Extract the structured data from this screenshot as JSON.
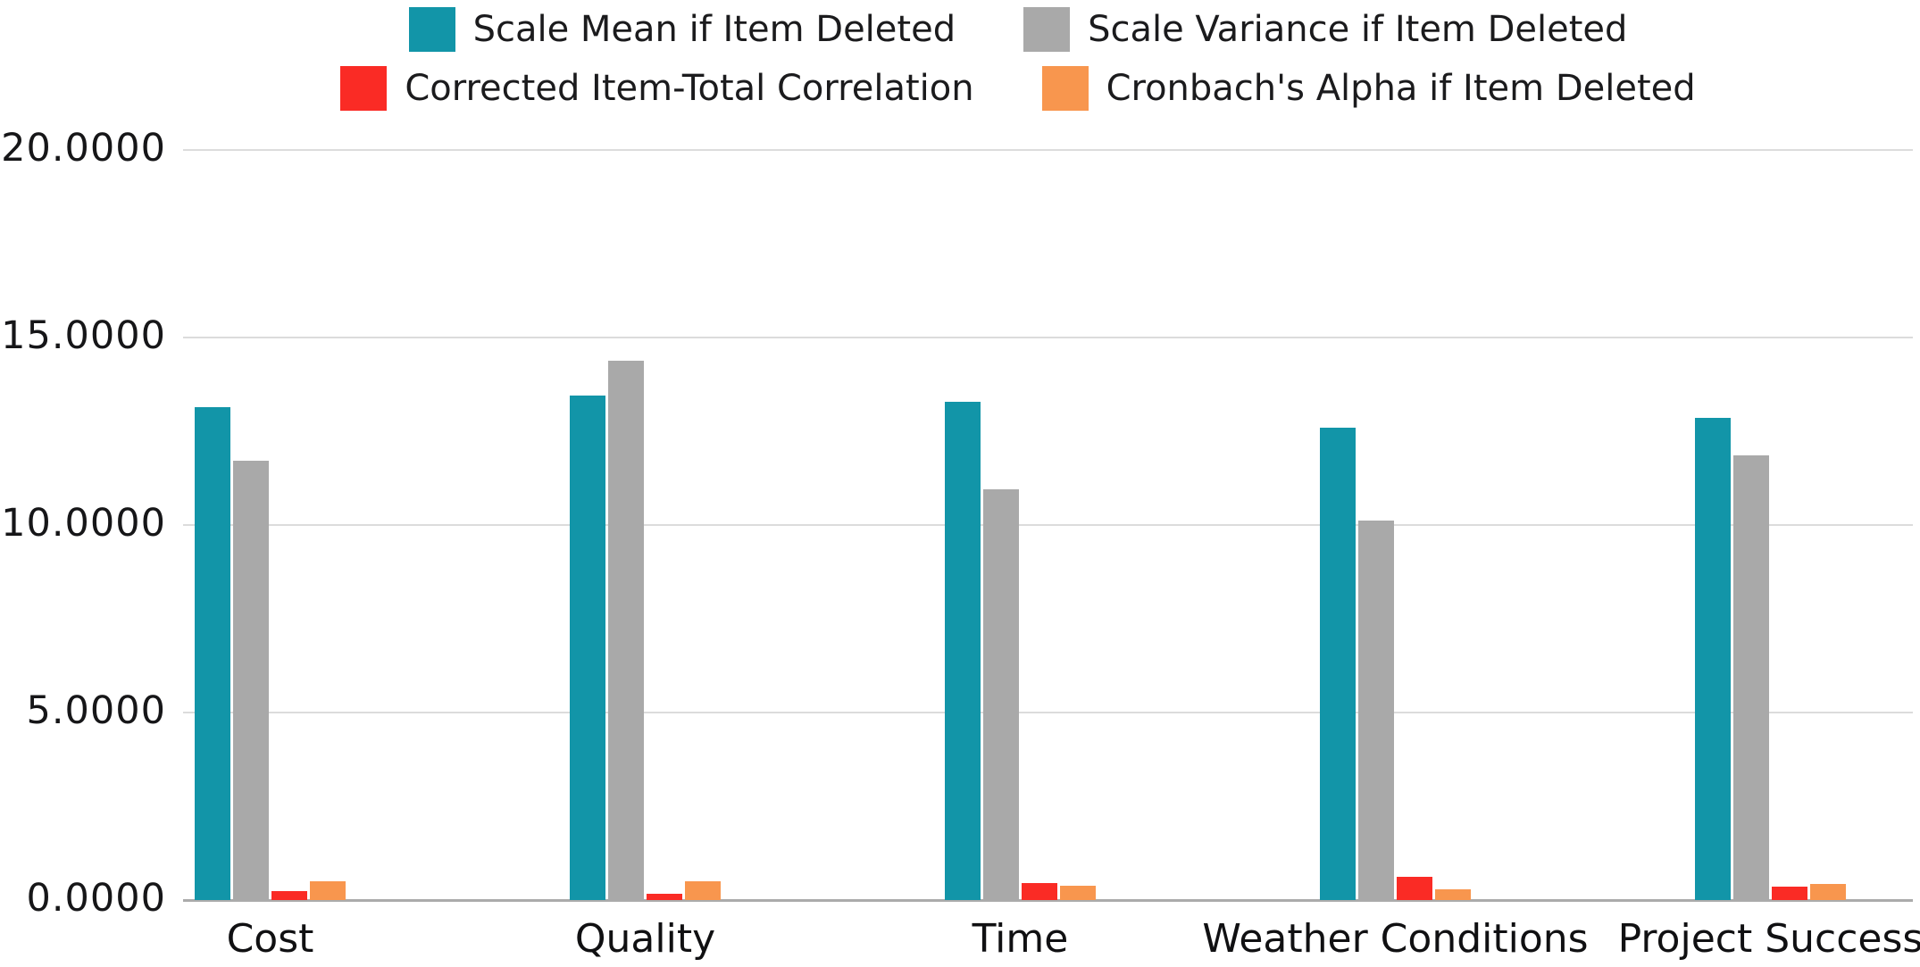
{
  "chart_data": {
    "type": "bar",
    "title": "",
    "xlabel": "",
    "ylabel": "",
    "categories": [
      "Cost",
      "Quality",
      "Time",
      "Weather Conditions",
      "Project Success"
    ],
    "series": [
      {
        "name": "Scale Mean if Item Deleted",
        "color": "#1295A8",
        "values": [
          13.15,
          13.45,
          13.28,
          12.6,
          12.85
        ]
      },
      {
        "name": "Scale Variance if Item Deleted",
        "color": "#A9A9A9",
        "values": [
          11.72,
          14.38,
          10.95,
          10.12,
          11.85
        ]
      },
      {
        "name": "Corrected Item-Total Correlation",
        "color": "#FA2B25",
        "values": [
          0.24,
          0.16,
          0.45,
          0.62,
          0.35
        ]
      },
      {
        "name": "Cronbach's Alpha if Item Deleted",
        "color": "#F8964E",
        "values": [
          0.51,
          0.49,
          0.39,
          0.28,
          0.43
        ]
      }
    ],
    "yticks": [
      "20.0000",
      "15.0000",
      "10.0000",
      "5.0000",
      "0.0000"
    ],
    "ytick_values": [
      20,
      15,
      10,
      5,
      0
    ],
    "ylim": [
      0,
      20
    ],
    "grid": true,
    "legend_position": "top",
    "legend_rows": [
      [
        0,
        1
      ],
      [
        2,
        3
      ]
    ],
    "colors": {
      "grid_line": "#DCDCDC",
      "zero_line": "#ABABAB",
      "text": "#1B1B1D",
      "background": "#FFFFFF"
    }
  }
}
